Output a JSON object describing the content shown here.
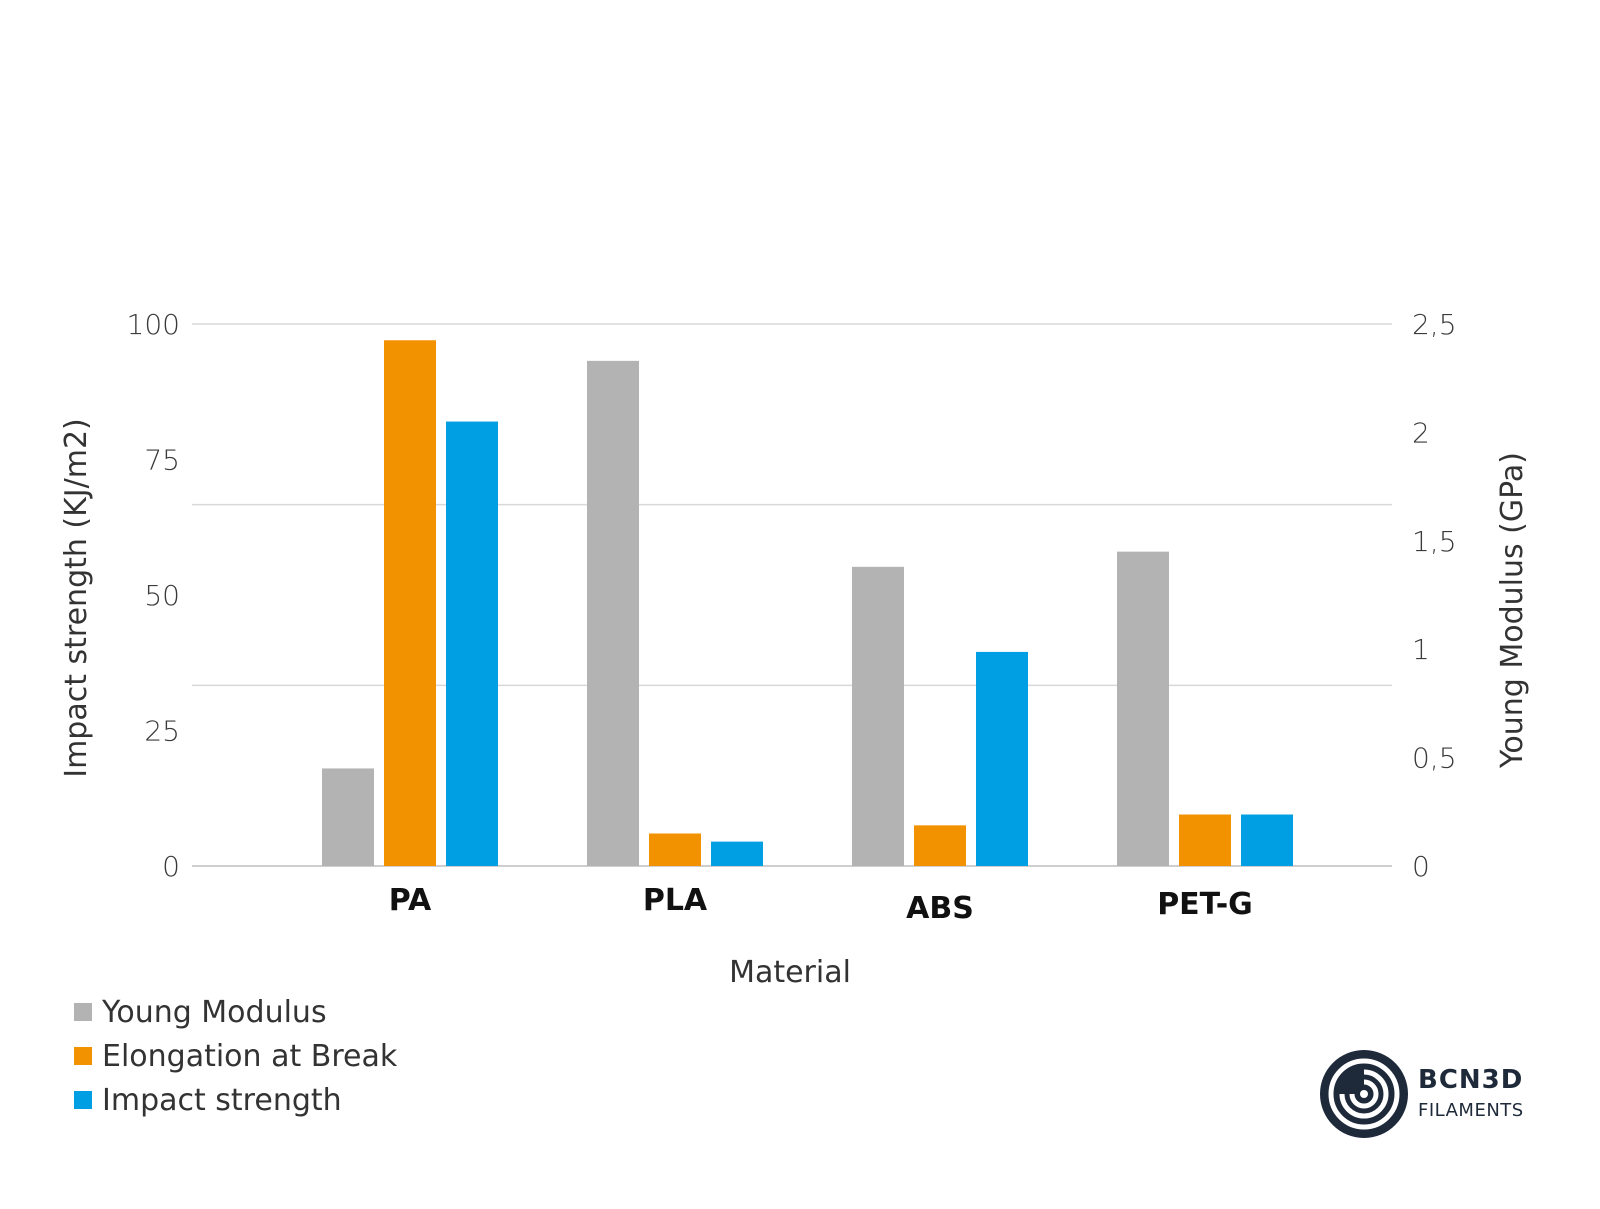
{
  "chart_data": {
    "type": "bar",
    "categories": [
      "PA",
      "PLA",
      "ABS",
      "PET-G"
    ],
    "series": [
      {
        "name": "Young Modulus",
        "axis": "right",
        "color": "#b3b3b3",
        "values": [
          0.45,
          2.33,
          1.38,
          1.45
        ]
      },
      {
        "name": "Elongation at Break",
        "axis": "left",
        "color": "#f39200",
        "values": [
          97,
          6,
          7.5,
          9.5
        ]
      },
      {
        "name": "Impact strength",
        "axis": "left",
        "color": "#009fe3",
        "values": [
          82,
          4.5,
          39.5,
          9.5
        ]
      }
    ],
    "xlabel": "Material",
    "ylabel": "Impact strength (KJ/m2)",
    "y2label": "Young Modulus (GPa)",
    "ylim": [
      0,
      100
    ],
    "y2lim": [
      0,
      2.5
    ],
    "yticks": [
      "0",
      "25",
      "50",
      "75",
      "100"
    ],
    "y2ticks": [
      "0",
      "0,5",
      "1",
      "1,5",
      "2",
      "2,5"
    ],
    "grid": true,
    "legend_position": "bottom-left"
  },
  "logo": {
    "main": "BCN3D",
    "sub": "FILAMENTS"
  }
}
